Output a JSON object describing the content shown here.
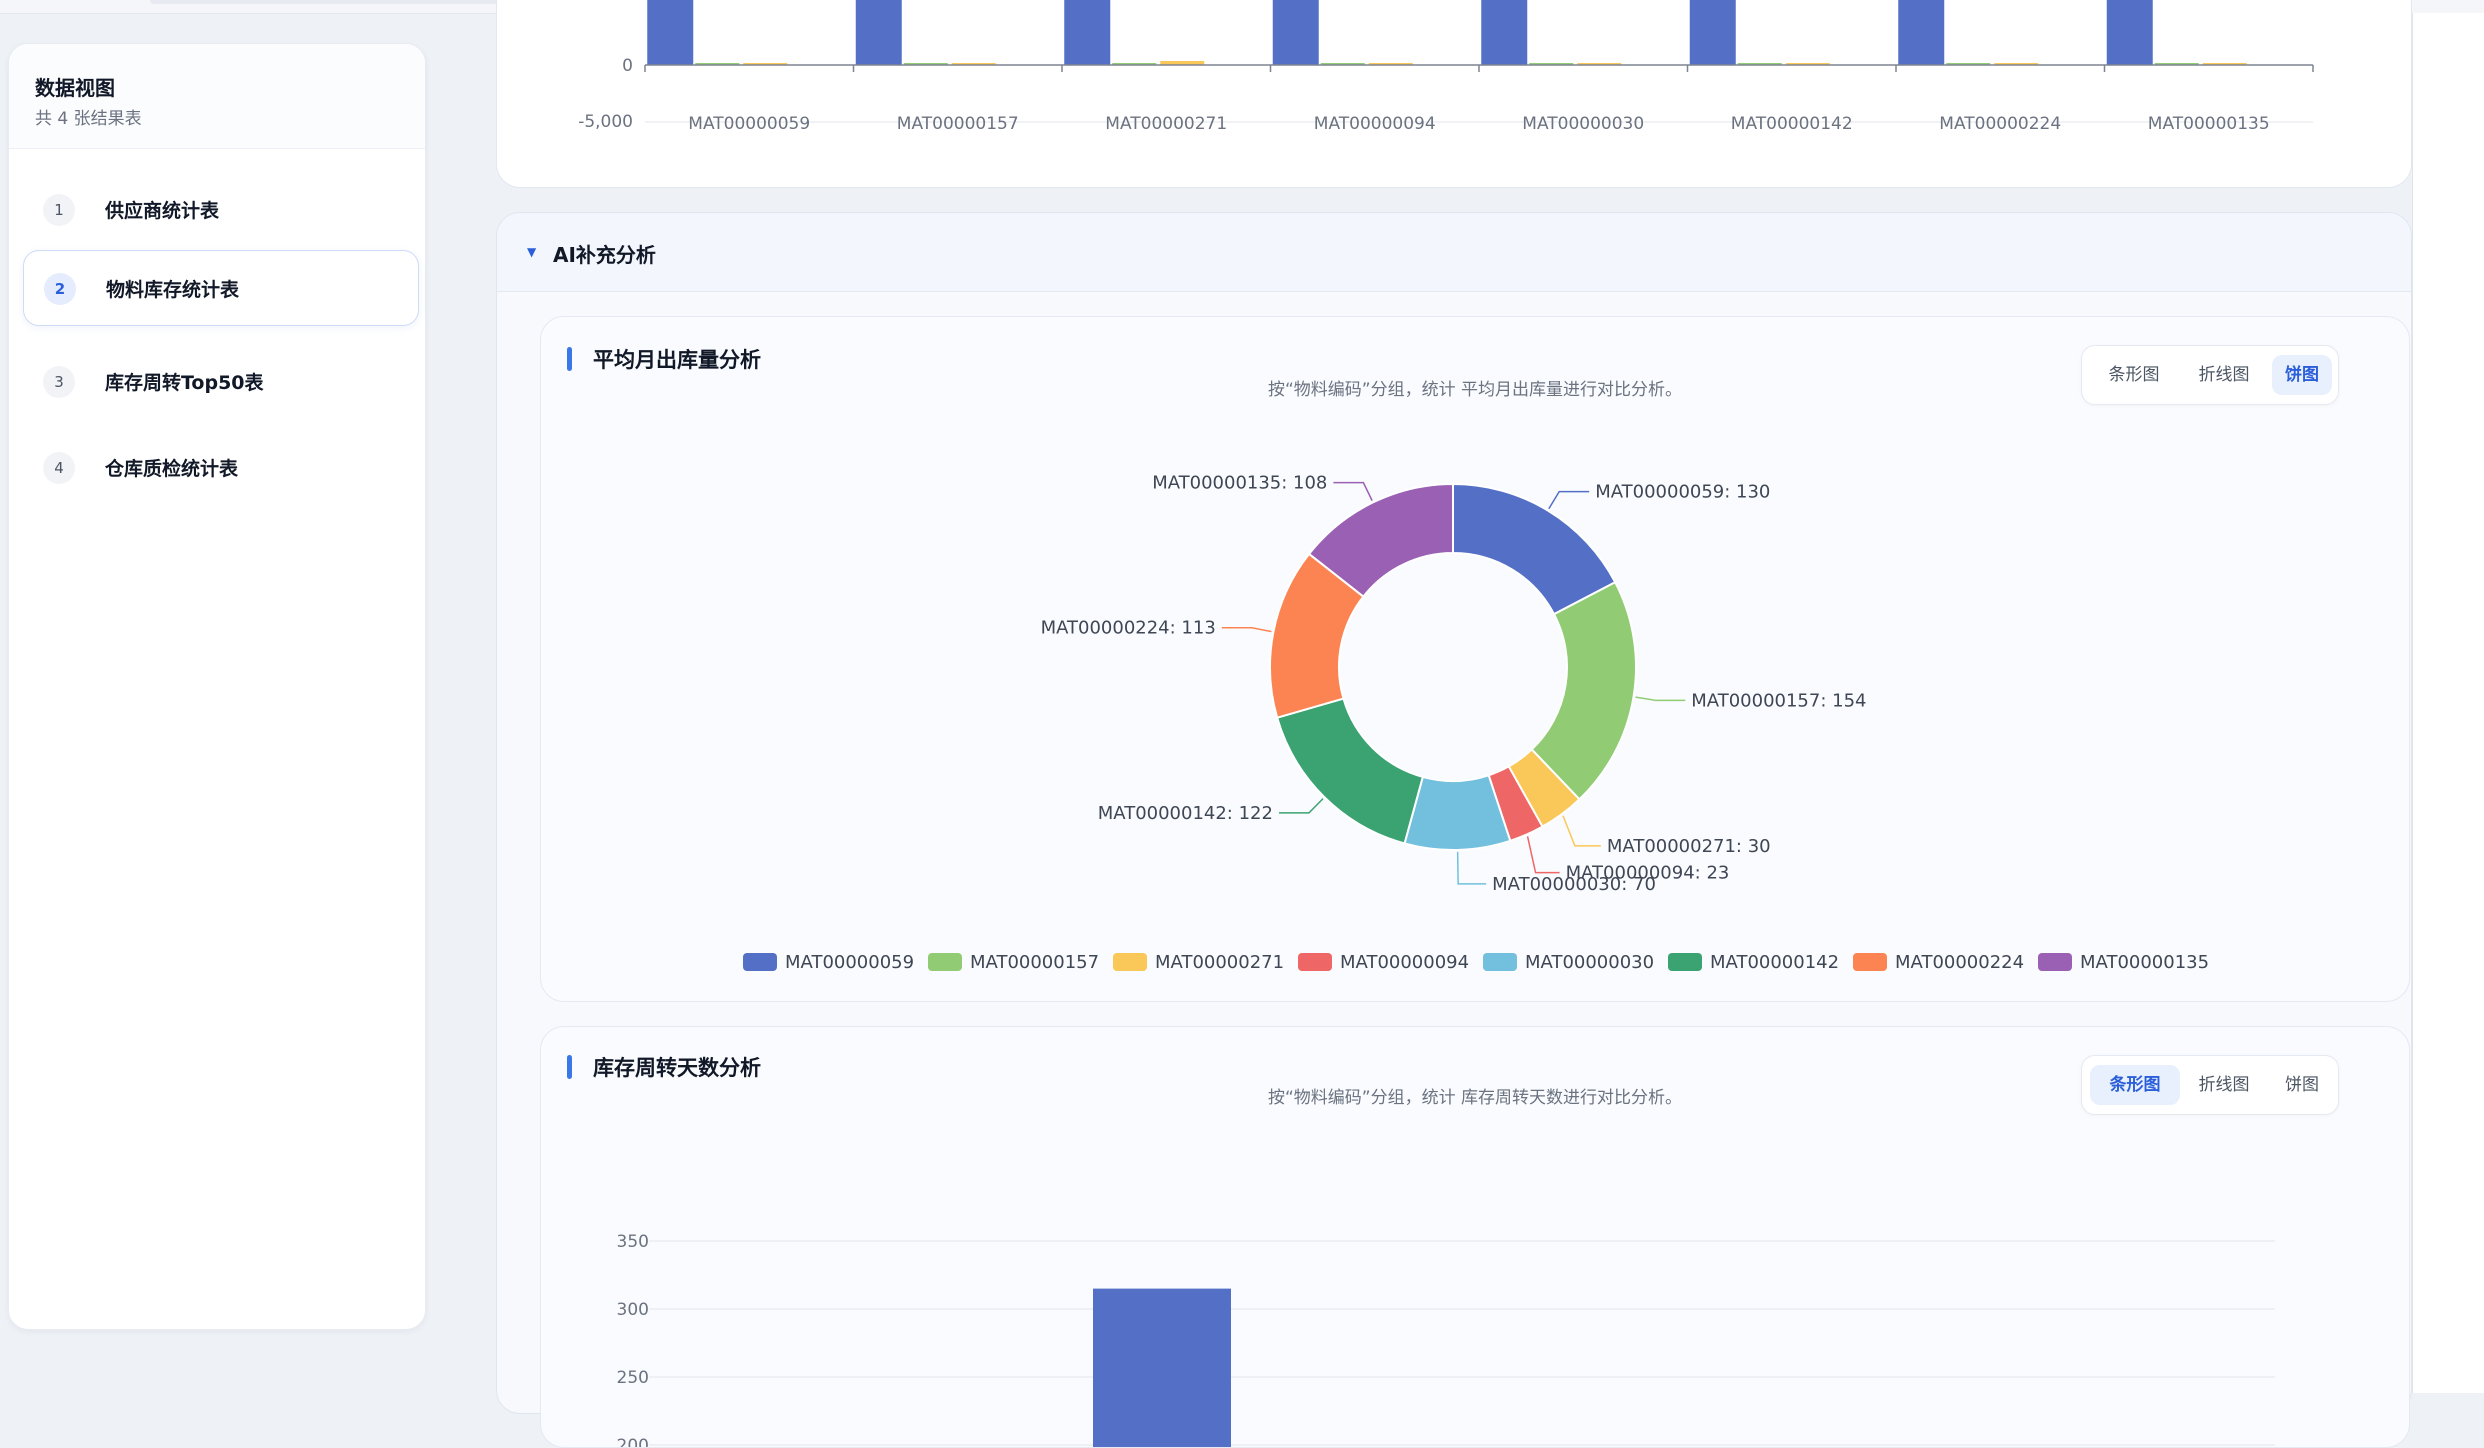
{
  "sidebar": {
    "title": "数据视图",
    "subtitle": "共 4 张结果表",
    "items": [
      {
        "num": "1",
        "label": "供应商统计表"
      },
      {
        "num": "2",
        "label": "物料库存统计表"
      },
      {
        "num": "3",
        "label": "库存周转Top50表"
      },
      {
        "num": "4",
        "label": "仓库质检统计表"
      }
    ]
  },
  "ai_section": {
    "title": "AI补充分析"
  },
  "toggle_labels": {
    "bar": "条形图",
    "line": "折线图",
    "pie": "饼图"
  },
  "card1": {
    "title": "平均月出库量分析",
    "desc": "按“物料编码”分组，统计 平均月出库量进行对比分析。",
    "active_view": "饼图"
  },
  "card2": {
    "title": "库存周转天数分析",
    "desc": "按“物料编码”分组，统计 库存周转天数进行对比分析。",
    "active_view": "条形图"
  },
  "chart_data": [
    {
      "type": "bar",
      "categories": [
        "MAT00000059",
        "MAT00000157",
        "MAT00000271",
        "MAT00000094",
        "MAT00000030",
        "MAT00000142",
        "MAT00000224",
        "MAT00000135"
      ],
      "y_ticks": [
        "0",
        "-5,000"
      ],
      "colors": [
        "#5470c6",
        "#91cc75",
        "#fac858"
      ]
    },
    {
      "type": "pie",
      "donut": true,
      "slices": [
        {
          "name": "MAT00000059",
          "value": 130,
          "color": "#5470c6",
          "label": "MAT00000059: 130"
        },
        {
          "name": "MAT00000157",
          "value": 154,
          "color": "#91cc75",
          "label": "MAT00000157: 154"
        },
        {
          "name": "MAT00000271",
          "value": 30,
          "color": "#fac858",
          "label": "MAT00000271: 30"
        },
        {
          "name": "MAT00000094",
          "value": 23,
          "color": "#ee6666",
          "label": "MAT00000094: 23"
        },
        {
          "name": "MAT00000030",
          "value": 70,
          "color": "#73c0de",
          "label": "MAT00000030: 70"
        },
        {
          "name": "MAT00000142",
          "value": 122,
          "color": "#3ba272",
          "label": "MAT00000142: 122"
        },
        {
          "name": "MAT00000224",
          "value": 113,
          "color": "#fc8452",
          "label": "MAT00000224: 113"
        },
        {
          "name": "MAT00000135",
          "value": 108,
          "color": "#9a60b4",
          "label": "MAT00000135: 108"
        }
      ],
      "legend": [
        "MAT00000059",
        "MAT00000157",
        "MAT00000271",
        "MAT00000094",
        "MAT00000030",
        "MAT00000142",
        "MAT00000224",
        "MAT00000135"
      ],
      "legend_position": "bottom"
    },
    {
      "type": "bar",
      "y_ticks": [
        350,
        300,
        250,
        200
      ],
      "values": [
        315
      ],
      "color": "#5470c6"
    }
  ]
}
